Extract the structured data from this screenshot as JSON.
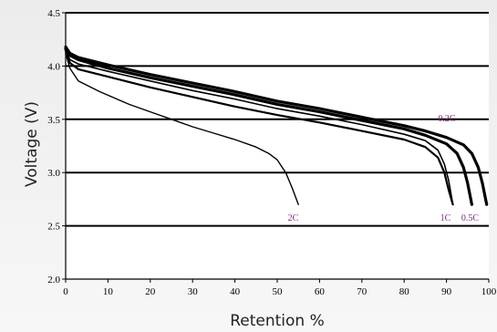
{
  "chart_data": {
    "type": "line",
    "xlabel": "Retention %",
    "ylabel": "Voltage (V)",
    "xlim": [
      0,
      100
    ],
    "ylim": [
      2.0,
      4.5
    ],
    "x_ticks": [
      "0",
      "10",
      "20",
      "30",
      "40",
      "50",
      "60",
      "70",
      "80",
      "90",
      "100"
    ],
    "y_ticks": [
      "2.0",
      "2.5",
      "3.0",
      "3.5",
      "4.0",
      "4.5"
    ],
    "grid": "horizontal",
    "label_color": "#7a1f7a",
    "series": [
      {
        "name": "0.2C",
        "width": 3.2,
        "points": [
          [
            0,
            4.18
          ],
          [
            1,
            4.12
          ],
          [
            3,
            4.08
          ],
          [
            10,
            4.01
          ],
          [
            20,
            3.92
          ],
          [
            30,
            3.84
          ],
          [
            40,
            3.76
          ],
          [
            50,
            3.67
          ],
          [
            60,
            3.6
          ],
          [
            70,
            3.52
          ],
          [
            80,
            3.44
          ],
          [
            85,
            3.39
          ],
          [
            90,
            3.33
          ],
          [
            94,
            3.26
          ],
          [
            96,
            3.18
          ],
          [
            97.5,
            3.05
          ],
          [
            98.5,
            2.9
          ],
          [
            99.5,
            2.7
          ]
        ]
      },
      {
        "name": "0.5C",
        "width": 3.2,
        "points": [
          [
            0,
            4.16
          ],
          [
            1,
            4.1
          ],
          [
            3,
            4.06
          ],
          [
            10,
            3.98
          ],
          [
            20,
            3.89
          ],
          [
            30,
            3.81
          ],
          [
            40,
            3.73
          ],
          [
            50,
            3.64
          ],
          [
            60,
            3.57
          ],
          [
            70,
            3.49
          ],
          [
            80,
            3.41
          ],
          [
            85,
            3.35
          ],
          [
            90,
            3.27
          ],
          [
            92.5,
            3.18
          ],
          [
            94,
            3.05
          ],
          [
            95,
            2.9
          ],
          [
            96,
            2.7
          ]
        ]
      },
      {
        "name": "1C",
        "width": 1.6,
        "points": [
          [
            0,
            4.15
          ],
          [
            1,
            4.06
          ],
          [
            3,
            4.02
          ],
          [
            10,
            3.95
          ],
          [
            20,
            3.86
          ],
          [
            30,
            3.77
          ],
          [
            40,
            3.69
          ],
          [
            50,
            3.6
          ],
          [
            60,
            3.53
          ],
          [
            70,
            3.45
          ],
          [
            80,
            3.36
          ],
          [
            85,
            3.3
          ],
          [
            88,
            3.21
          ],
          [
            89.5,
            3.08
          ],
          [
            90.5,
            2.93
          ],
          [
            91.5,
            2.7
          ]
        ]
      },
      {
        "name": "",
        "width": 2.2,
        "points": [
          [
            0,
            4.14
          ],
          [
            1,
            4.03
          ],
          [
            3,
            3.97
          ],
          [
            10,
            3.9
          ],
          [
            20,
            3.8
          ],
          [
            30,
            3.71
          ],
          [
            40,
            3.62
          ],
          [
            50,
            3.54
          ],
          [
            60,
            3.47
          ],
          [
            70,
            3.39
          ],
          [
            80,
            3.31
          ],
          [
            85,
            3.24
          ],
          [
            88,
            3.14
          ],
          [
            89.5,
            3.0
          ],
          [
            90.5,
            2.84
          ],
          [
            91.5,
            2.7
          ]
        ]
      },
      {
        "name": "2C",
        "width": 1.4,
        "points": [
          [
            0,
            4.12
          ],
          [
            1,
            3.98
          ],
          [
            3,
            3.86
          ],
          [
            8,
            3.76
          ],
          [
            15,
            3.64
          ],
          [
            20,
            3.57
          ],
          [
            25,
            3.5
          ],
          [
            30,
            3.43
          ],
          [
            35,
            3.37
          ],
          [
            40,
            3.31
          ],
          [
            45,
            3.24
          ],
          [
            48,
            3.18
          ],
          [
            50,
            3.12
          ],
          [
            52,
            3.0
          ],
          [
            53.5,
            2.86
          ],
          [
            55,
            2.7
          ]
        ]
      }
    ],
    "labels": [
      {
        "text": "0.2C",
        "x": 88,
        "y": 3.48
      },
      {
        "text": "2C",
        "x": 52.5,
        "y": 2.55
      },
      {
        "text": "1C",
        "x": 88.5,
        "y": 2.55
      },
      {
        "text": "0.5C",
        "x": 93.5,
        "y": 2.55
      }
    ]
  }
}
